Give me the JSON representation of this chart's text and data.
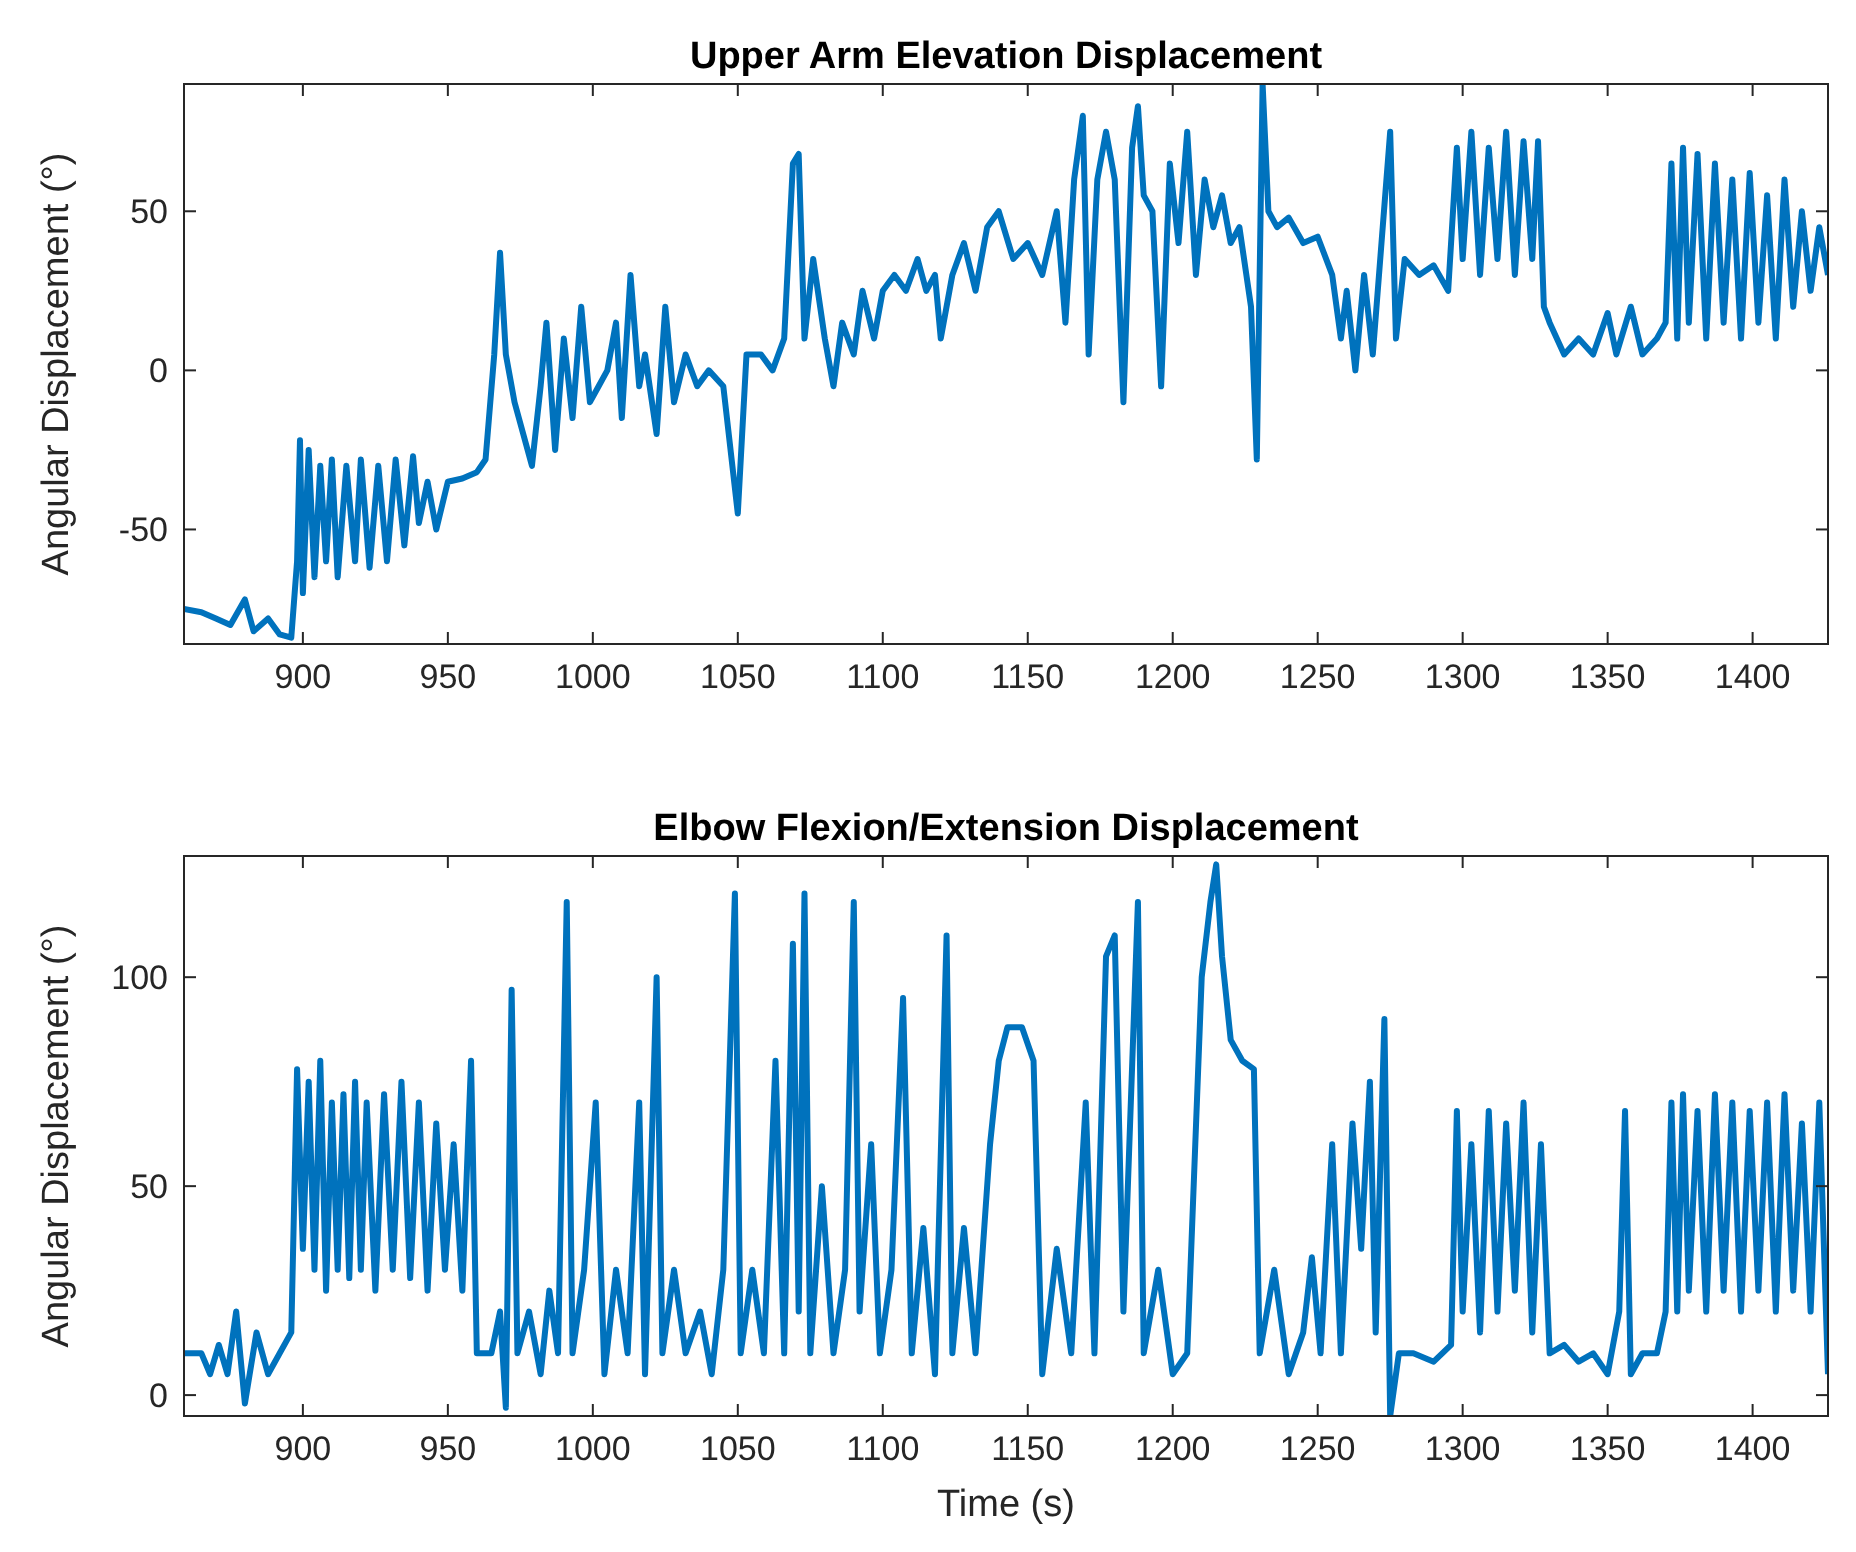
{
  "chart_data": [
    {
      "type": "line",
      "title": "Upper Arm Elevation Displacement",
      "ylabel": "Angular Displacement (°)",
      "xlim": [
        859,
        1426
      ],
      "xticks": [
        900,
        950,
        1000,
        1050,
        1100,
        1150,
        1200,
        1250,
        1300,
        1350,
        1400
      ],
      "ylim": [
        -86,
        90
      ],
      "yticks": [
        -50,
        0,
        50
      ],
      "x": [
        859,
        865,
        870,
        875,
        880,
        883,
        888,
        892,
        896,
        898,
        899,
        900,
        902,
        904,
        906,
        908,
        910,
        912,
        915,
        918,
        920,
        923,
        926,
        929,
        932,
        935,
        938,
        940,
        943,
        946,
        950,
        955,
        960,
        963,
        966,
        968,
        970,
        973,
        976,
        979,
        982,
        984,
        987,
        990,
        993,
        996,
        999,
        1002,
        1005,
        1008,
        1010,
        1013,
        1016,
        1018,
        1022,
        1025,
        1028,
        1032,
        1036,
        1040,
        1045,
        1050,
        1053,
        1058,
        1062,
        1066,
        1069,
        1071,
        1073,
        1076,
        1080,
        1083,
        1086,
        1090,
        1093,
        1097,
        1100,
        1104,
        1108,
        1112,
        1115,
        1118,
        1120,
        1124,
        1128,
        1132,
        1136,
        1140,
        1145,
        1150,
        1155,
        1160,
        1163,
        1166,
        1169,
        1171,
        1174,
        1177,
        1180,
        1183,
        1186,
        1188,
        1190,
        1193,
        1196,
        1199,
        1202,
        1205,
        1208,
        1211,
        1214,
        1217,
        1220,
        1223,
        1227,
        1229,
        1231,
        1233,
        1236,
        1240,
        1245,
        1250,
        1255,
        1258,
        1260,
        1263,
        1266,
        1269,
        1272,
        1275,
        1277,
        1280,
        1285,
        1290,
        1295,
        1298,
        1300,
        1303,
        1306,
        1309,
        1312,
        1315,
        1318,
        1321,
        1324,
        1326,
        1328,
        1330,
        1335,
        1340,
        1345,
        1350,
        1353,
        1358,
        1362,
        1367,
        1370,
        1372,
        1374,
        1376,
        1378,
        1381,
        1384,
        1387,
        1390,
        1393,
        1396,
        1399,
        1402,
        1405,
        1408,
        1411,
        1414,
        1417,
        1420,
        1423,
        1426
      ],
      "series": [
        {
          "color": "#0072bd",
          "values": [
            -75,
            -76,
            -78,
            -80,
            -72,
            -82,
            -78,
            -83,
            -84,
            -60,
            -22,
            -70,
            -25,
            -65,
            -30,
            -60,
            -28,
            -65,
            -30,
            -60,
            -28,
            -62,
            -30,
            -60,
            -28,
            -55,
            -27,
            -48,
            -35,
            -50,
            -35,
            -34,
            -32,
            -28,
            5,
            37,
            5,
            -10,
            -20,
            -30,
            -5,
            15,
            -25,
            10,
            -15,
            20,
            -10,
            -5,
            0,
            15,
            -15,
            30,
            -5,
            5,
            -20,
            20,
            -10,
            5,
            -5,
            0,
            -5,
            -45,
            5,
            5,
            0,
            10,
            65,
            68,
            10,
            35,
            10,
            -5,
            15,
            5,
            25,
            10,
            25,
            30,
            25,
            35,
            25,
            30,
            10,
            30,
            40,
            25,
            45,
            50,
            35,
            40,
            30,
            50,
            15,
            60,
            80,
            5,
            60,
            75,
            60,
            -10,
            70,
            83,
            55,
            50,
            -5,
            65,
            40,
            75,
            30,
            60,
            45,
            55,
            40,
            45,
            20,
            -28,
            90,
            50,
            45,
            48,
            40,
            42,
            30,
            10,
            25,
            0,
            30,
            5,
            40,
            75,
            10,
            35,
            30,
            33,
            25,
            70,
            35,
            75,
            30,
            70,
            35,
            75,
            30,
            72,
            35,
            72,
            20,
            15,
            5,
            10,
            5,
            18,
            5,
            20,
            5,
            10,
            15,
            65,
            10,
            70,
            15,
            68,
            10,
            65,
            15,
            60,
            10,
            62,
            15,
            55,
            10,
            60,
            20,
            50,
            25,
            45,
            30
          ]
        }
      ]
    },
    {
      "type": "line",
      "title": "Elbow Flexion/Extension Displacement",
      "xlabel": "Time (s)",
      "ylabel": "Angular Displacement (°)",
      "xlim": [
        859,
        1426
      ],
      "xticks": [
        900,
        950,
        1000,
        1050,
        1100,
        1150,
        1200,
        1250,
        1300,
        1350,
        1400
      ],
      "ylim": [
        -5,
        129
      ],
      "yticks": [
        0,
        50,
        100
      ],
      "x": [
        859,
        865,
        868,
        871,
        874,
        877,
        880,
        884,
        888,
        892,
        896,
        898,
        900,
        902,
        904,
        906,
        908,
        910,
        912,
        914,
        916,
        918,
        920,
        922,
        925,
        928,
        931,
        934,
        937,
        940,
        943,
        946,
        949,
        952,
        955,
        958,
        960,
        965,
        968,
        970,
        972,
        974,
        978,
        982,
        985,
        988,
        991,
        993,
        997,
        1001,
        1004,
        1008,
        1012,
        1016,
        1018,
        1022,
        1024,
        1028,
        1032,
        1037,
        1041,
        1045,
        1049,
        1051,
        1055,
        1059,
        1063,
        1066,
        1069,
        1071,
        1073,
        1075,
        1079,
        1083,
        1087,
        1090,
        1092,
        1096,
        1099,
        1103,
        1107,
        1110,
        1114,
        1118,
        1122,
        1124,
        1128,
        1132,
        1137,
        1140,
        1143,
        1148,
        1152,
        1155,
        1160,
        1165,
        1170,
        1173,
        1177,
        1180,
        1183,
        1188,
        1190,
        1195,
        1200,
        1205,
        1210,
        1213,
        1215,
        1217,
        1220,
        1224,
        1228,
        1230,
        1235,
        1240,
        1245,
        1248,
        1251,
        1255,
        1258,
        1262,
        1265,
        1268,
        1270,
        1273,
        1275,
        1278,
        1283,
        1290,
        1296,
        1298,
        1300,
        1303,
        1306,
        1309,
        1312,
        1315,
        1318,
        1321,
        1324,
        1327,
        1330,
        1335,
        1340,
        1345,
        1350,
        1354,
        1356,
        1358,
        1362,
        1367,
        1370,
        1372,
        1374,
        1376,
        1378,
        1381,
        1384,
        1387,
        1390,
        1393,
        1396,
        1399,
        1402,
        1405,
        1408,
        1411,
        1414,
        1417,
        1420,
        1423,
        1426
      ],
      "series": [
        {
          "color": "#0072bd",
          "values": [
            10,
            10,
            5,
            12,
            5,
            20,
            -2,
            15,
            5,
            10,
            15,
            78,
            35,
            75,
            30,
            80,
            25,
            70,
            30,
            72,
            28,
            75,
            30,
            70,
            25,
            72,
            30,
            75,
            28,
            70,
            25,
            65,
            30,
            60,
            25,
            80,
            10,
            10,
            20,
            -3,
            97,
            10,
            20,
            5,
            25,
            10,
            118,
            10,
            30,
            70,
            5,
            30,
            10,
            70,
            5,
            100,
            10,
            30,
            10,
            20,
            5,
            30,
            120,
            10,
            30,
            10,
            80,
            10,
            108,
            20,
            120,
            10,
            50,
            10,
            30,
            118,
            20,
            60,
            10,
            30,
            95,
            10,
            40,
            5,
            110,
            10,
            40,
            10,
            60,
            80,
            88,
            88,
            80,
            5,
            35,
            10,
            70,
            10,
            105,
            110,
            20,
            118,
            10,
            30,
            5,
            10,
            100,
            118,
            127,
            105,
            85,
            80,
            78,
            10,
            30,
            5,
            15,
            33,
            10,
            60,
            10,
            65,
            35,
            75,
            15,
            90,
            -5,
            10,
            10,
            8,
            12,
            68,
            20,
            60,
            15,
            68,
            20,
            65,
            25,
            70,
            15,
            60,
            10,
            12,
            8,
            10,
            5,
            20,
            68,
            5,
            10,
            10,
            20,
            70,
            20,
            72,
            25,
            68,
            20,
            72,
            25,
            70,
            20,
            68,
            25,
            70,
            20,
            72,
            25,
            65,
            20,
            70,
            5
          ]
        }
      ]
    }
  ]
}
